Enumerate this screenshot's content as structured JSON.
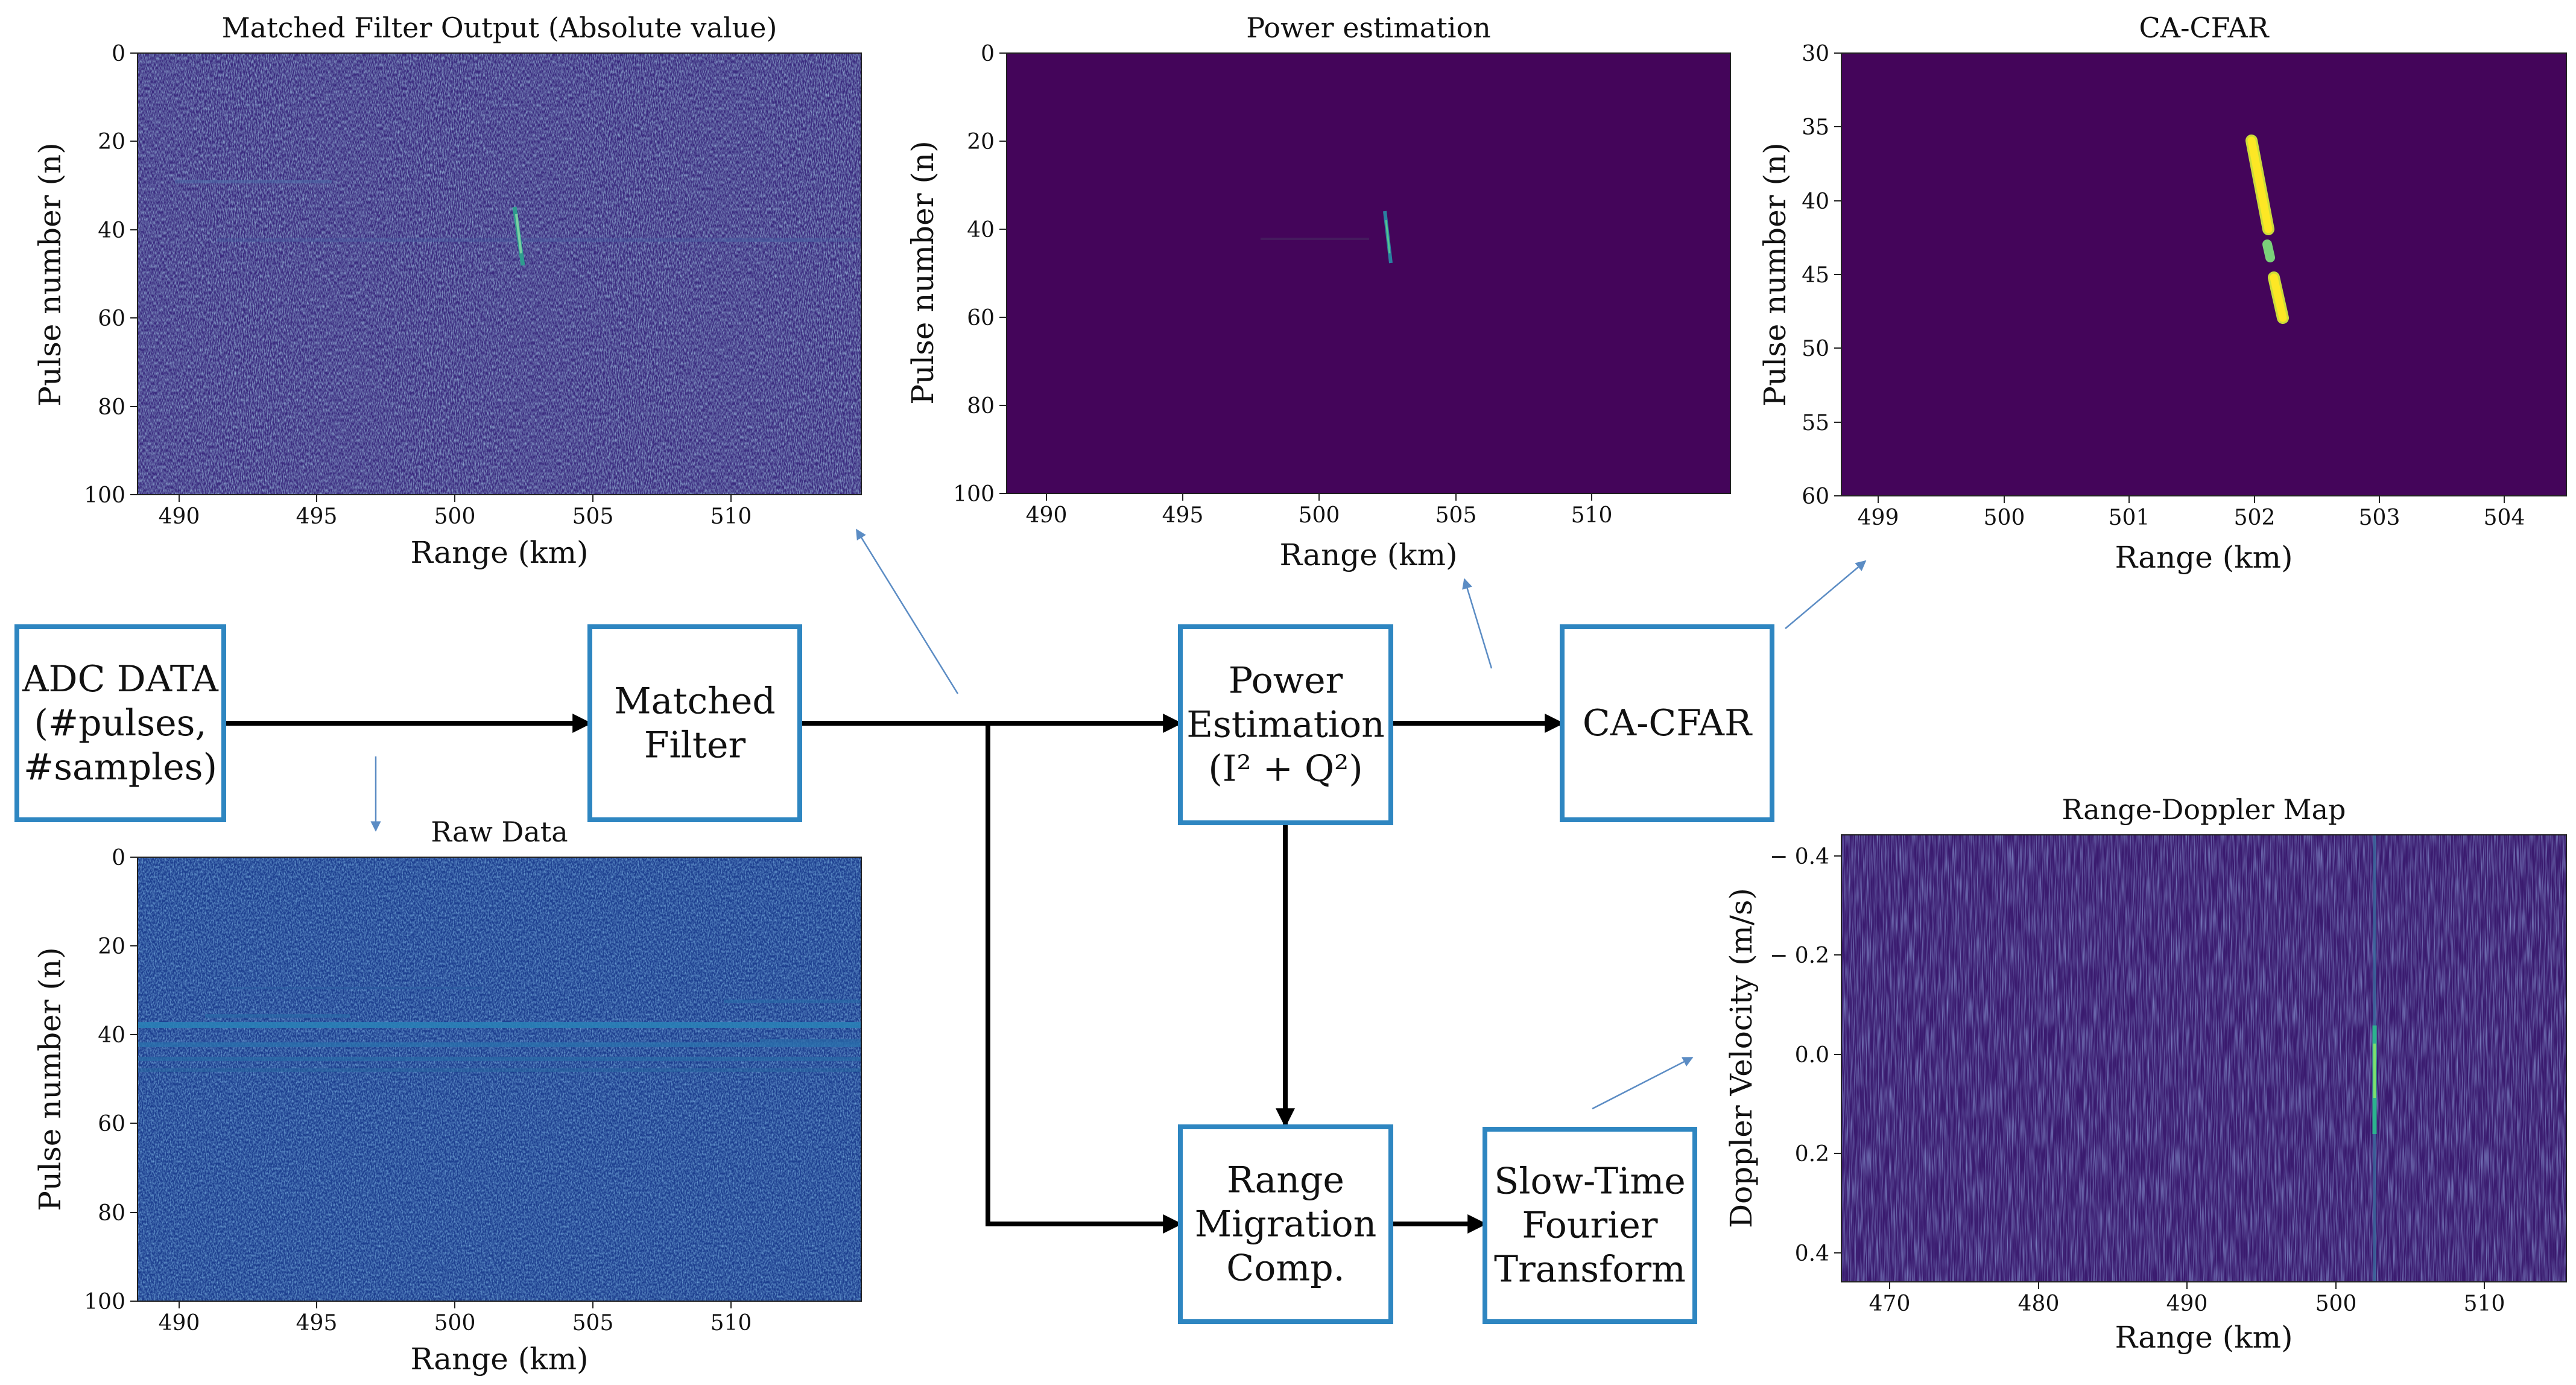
{
  "blocks": {
    "adc": [
      "ADC DATA",
      "(#pulses,",
      "#samples)"
    ],
    "matched": [
      "Matched",
      "Filter"
    ],
    "power": [
      "Power",
      "Estimation",
      "(I² + Q²)"
    ],
    "cfar": [
      "CA-CFAR"
    ],
    "rmc": [
      "Range",
      "Migration",
      "Comp."
    ],
    "stft": [
      "Slow-Time",
      "Fourier",
      "Transform"
    ]
  },
  "charts": {
    "matched": {
      "title": "Matched Filter Output (Absolute value)",
      "xlabel": "Range (km)",
      "ylabel": "Pulse number (n)",
      "xticks": [
        "490",
        "495",
        "500",
        "505",
        "510"
      ],
      "yticks": [
        "0",
        "20",
        "40",
        "60",
        "80",
        "100"
      ]
    },
    "power": {
      "title": "Power estimation",
      "xlabel": "Range (km)",
      "ylabel": "Pulse number (n)",
      "xticks": [
        "490",
        "495",
        "500",
        "505",
        "510"
      ],
      "yticks": [
        "0",
        "20",
        "40",
        "60",
        "80",
        "100"
      ]
    },
    "cfar": {
      "title": "CA-CFAR",
      "xlabel": "Range (km)",
      "ylabel": "Pulse number (n)",
      "xticks": [
        "499",
        "500",
        "501",
        "502",
        "503",
        "504"
      ],
      "yticks": [
        "30",
        "35",
        "40",
        "45",
        "50",
        "55",
        "60"
      ]
    },
    "raw": {
      "title": "Raw Data",
      "xlabel": "Range (km)",
      "ylabel": "Pulse number (n)",
      "xticks": [
        "490",
        "495",
        "500",
        "505",
        "510"
      ],
      "yticks": [
        "0",
        "20",
        "40",
        "60",
        "80",
        "100"
      ]
    },
    "rd": {
      "title": "Range-Doppler Map",
      "xlabel": "Range (km)",
      "ylabel": "Doppler Velocity (m/s)",
      "xticks": [
        "470",
        "480",
        "490",
        "500",
        "510"
      ],
      "yticks": [
        "− 0.4",
        "− 0.2",
        "0.0",
        "0.2",
        "0.4"
      ]
    }
  },
  "chart_data": [
    {
      "type": "heatmap",
      "title": "Matched Filter Output (Absolute value)",
      "xlabel": "Range (km)",
      "ylabel": "Pulse number (n)",
      "xlim": [
        488.2,
        514.3
      ],
      "ylim": [
        100,
        0
      ],
      "colormap": "viridis",
      "features": [
        {
          "kind": "target-streak",
          "range_km": [
            502.1,
            502.4
          ],
          "pulses": [
            36,
            48
          ]
        }
      ]
    },
    {
      "type": "heatmap",
      "title": "Power estimation",
      "xlabel": "Range (km)",
      "ylabel": "Pulse number (n)",
      "xlim": [
        488.2,
        514.7
      ],
      "ylim": [
        100,
        0
      ],
      "colormap": "viridis",
      "features": [
        {
          "kind": "target-streak",
          "range_km": [
            502.1,
            502.3
          ],
          "pulses": [
            36,
            48
          ]
        }
      ]
    },
    {
      "type": "heatmap",
      "title": "CA-CFAR",
      "xlabel": "Range (km)",
      "ylabel": "Pulse number (n)",
      "xlim": [
        498.7,
        504.5
      ],
      "ylim": [
        60,
        30
      ],
      "colormap": "viridis",
      "features": [
        {
          "kind": "detection",
          "range_km": [
            501.9,
            502.25
          ],
          "pulses": [
            36,
            48
          ]
        }
      ]
    },
    {
      "type": "heatmap",
      "title": "Raw Data",
      "xlabel": "Range (km)",
      "ylabel": "Pulse number (n)",
      "xlim": [
        488.2,
        514.3
      ],
      "ylim": [
        100,
        0
      ],
      "colormap": "blue",
      "features": [
        {
          "kind": "horizontal-bands",
          "pulses": [
            34,
            36,
            38,
            40,
            42,
            44,
            46
          ]
        }
      ]
    },
    {
      "type": "heatmap",
      "title": "Range-Doppler Map",
      "xlabel": "Range (km)",
      "ylabel": "Doppler Velocity (m/s)",
      "xlim": [
        466.5,
        514.5
      ],
      "ylim": [
        -0.45,
        0.45
      ],
      "colormap": "viridis",
      "features": [
        {
          "kind": "target-line",
          "range_km": 502.1,
          "doppler": [
            -0.45,
            0.45
          ],
          "peak_doppler": 0.0
        }
      ]
    }
  ]
}
